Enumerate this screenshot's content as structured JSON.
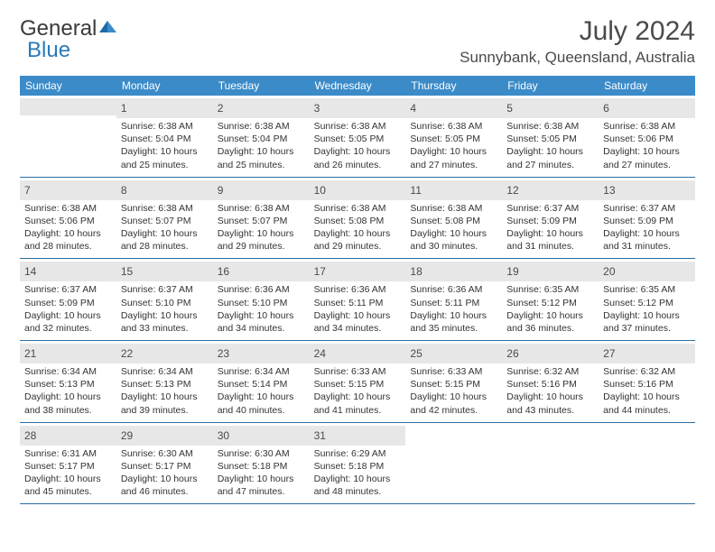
{
  "logo": {
    "word1": "General",
    "word2": "Blue"
  },
  "title": "July 2024",
  "location": "Sunnybank, Queensland, Australia",
  "weekdays": [
    "Sunday",
    "Monday",
    "Tuesday",
    "Wednesday",
    "Thursday",
    "Friday",
    "Saturday"
  ],
  "colors": {
    "header_bg": "#3b8bc8",
    "header_text": "#ffffff",
    "daynum_bg": "#e7e7e7",
    "row_border": "#2a6ea3",
    "body_text": "#333333",
    "title_text": "#4a4a4a"
  },
  "weeks": [
    [
      {
        "day": "",
        "lines": []
      },
      {
        "day": "1",
        "lines": [
          "Sunrise: 6:38 AM",
          "Sunset: 5:04 PM",
          "Daylight: 10 hours",
          "and 25 minutes."
        ]
      },
      {
        "day": "2",
        "lines": [
          "Sunrise: 6:38 AM",
          "Sunset: 5:04 PM",
          "Daylight: 10 hours",
          "and 25 minutes."
        ]
      },
      {
        "day": "3",
        "lines": [
          "Sunrise: 6:38 AM",
          "Sunset: 5:05 PM",
          "Daylight: 10 hours",
          "and 26 minutes."
        ]
      },
      {
        "day": "4",
        "lines": [
          "Sunrise: 6:38 AM",
          "Sunset: 5:05 PM",
          "Daylight: 10 hours",
          "and 27 minutes."
        ]
      },
      {
        "day": "5",
        "lines": [
          "Sunrise: 6:38 AM",
          "Sunset: 5:05 PM",
          "Daylight: 10 hours",
          "and 27 minutes."
        ]
      },
      {
        "day": "6",
        "lines": [
          "Sunrise: 6:38 AM",
          "Sunset: 5:06 PM",
          "Daylight: 10 hours",
          "and 27 minutes."
        ]
      }
    ],
    [
      {
        "day": "7",
        "lines": [
          "Sunrise: 6:38 AM",
          "Sunset: 5:06 PM",
          "Daylight: 10 hours",
          "and 28 minutes."
        ]
      },
      {
        "day": "8",
        "lines": [
          "Sunrise: 6:38 AM",
          "Sunset: 5:07 PM",
          "Daylight: 10 hours",
          "and 28 minutes."
        ]
      },
      {
        "day": "9",
        "lines": [
          "Sunrise: 6:38 AM",
          "Sunset: 5:07 PM",
          "Daylight: 10 hours",
          "and 29 minutes."
        ]
      },
      {
        "day": "10",
        "lines": [
          "Sunrise: 6:38 AM",
          "Sunset: 5:08 PM",
          "Daylight: 10 hours",
          "and 29 minutes."
        ]
      },
      {
        "day": "11",
        "lines": [
          "Sunrise: 6:38 AM",
          "Sunset: 5:08 PM",
          "Daylight: 10 hours",
          "and 30 minutes."
        ]
      },
      {
        "day": "12",
        "lines": [
          "Sunrise: 6:37 AM",
          "Sunset: 5:09 PM",
          "Daylight: 10 hours",
          "and 31 minutes."
        ]
      },
      {
        "day": "13",
        "lines": [
          "Sunrise: 6:37 AM",
          "Sunset: 5:09 PM",
          "Daylight: 10 hours",
          "and 31 minutes."
        ]
      }
    ],
    [
      {
        "day": "14",
        "lines": [
          "Sunrise: 6:37 AM",
          "Sunset: 5:09 PM",
          "Daylight: 10 hours",
          "and 32 minutes."
        ]
      },
      {
        "day": "15",
        "lines": [
          "Sunrise: 6:37 AM",
          "Sunset: 5:10 PM",
          "Daylight: 10 hours",
          "and 33 minutes."
        ]
      },
      {
        "day": "16",
        "lines": [
          "Sunrise: 6:36 AM",
          "Sunset: 5:10 PM",
          "Daylight: 10 hours",
          "and 34 minutes."
        ]
      },
      {
        "day": "17",
        "lines": [
          "Sunrise: 6:36 AM",
          "Sunset: 5:11 PM",
          "Daylight: 10 hours",
          "and 34 minutes."
        ]
      },
      {
        "day": "18",
        "lines": [
          "Sunrise: 6:36 AM",
          "Sunset: 5:11 PM",
          "Daylight: 10 hours",
          "and 35 minutes."
        ]
      },
      {
        "day": "19",
        "lines": [
          "Sunrise: 6:35 AM",
          "Sunset: 5:12 PM",
          "Daylight: 10 hours",
          "and 36 minutes."
        ]
      },
      {
        "day": "20",
        "lines": [
          "Sunrise: 6:35 AM",
          "Sunset: 5:12 PM",
          "Daylight: 10 hours",
          "and 37 minutes."
        ]
      }
    ],
    [
      {
        "day": "21",
        "lines": [
          "Sunrise: 6:34 AM",
          "Sunset: 5:13 PM",
          "Daylight: 10 hours",
          "and 38 minutes."
        ]
      },
      {
        "day": "22",
        "lines": [
          "Sunrise: 6:34 AM",
          "Sunset: 5:13 PM",
          "Daylight: 10 hours",
          "and 39 minutes."
        ]
      },
      {
        "day": "23",
        "lines": [
          "Sunrise: 6:34 AM",
          "Sunset: 5:14 PM",
          "Daylight: 10 hours",
          "and 40 minutes."
        ]
      },
      {
        "day": "24",
        "lines": [
          "Sunrise: 6:33 AM",
          "Sunset: 5:15 PM",
          "Daylight: 10 hours",
          "and 41 minutes."
        ]
      },
      {
        "day": "25",
        "lines": [
          "Sunrise: 6:33 AM",
          "Sunset: 5:15 PM",
          "Daylight: 10 hours",
          "and 42 minutes."
        ]
      },
      {
        "day": "26",
        "lines": [
          "Sunrise: 6:32 AM",
          "Sunset: 5:16 PM",
          "Daylight: 10 hours",
          "and 43 minutes."
        ]
      },
      {
        "day": "27",
        "lines": [
          "Sunrise: 6:32 AM",
          "Sunset: 5:16 PM",
          "Daylight: 10 hours",
          "and 44 minutes."
        ]
      }
    ],
    [
      {
        "day": "28",
        "lines": [
          "Sunrise: 6:31 AM",
          "Sunset: 5:17 PM",
          "Daylight: 10 hours",
          "and 45 minutes."
        ]
      },
      {
        "day": "29",
        "lines": [
          "Sunrise: 6:30 AM",
          "Sunset: 5:17 PM",
          "Daylight: 10 hours",
          "and 46 minutes."
        ]
      },
      {
        "day": "30",
        "lines": [
          "Sunrise: 6:30 AM",
          "Sunset: 5:18 PM",
          "Daylight: 10 hours",
          "and 47 minutes."
        ]
      },
      {
        "day": "31",
        "lines": [
          "Sunrise: 6:29 AM",
          "Sunset: 5:18 PM",
          "Daylight: 10 hours",
          "and 48 minutes."
        ]
      },
      {
        "day": "",
        "lines": []
      },
      {
        "day": "",
        "lines": []
      },
      {
        "day": "",
        "lines": []
      }
    ]
  ]
}
